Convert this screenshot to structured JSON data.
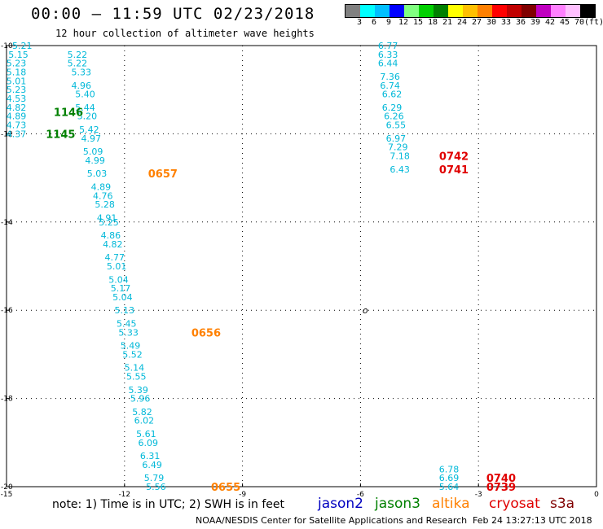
{
  "header": {
    "title": "00:00 – 11:59 UTC 02/23/2018",
    "subtitle": "12 hour collection of altimeter wave heights"
  },
  "colorbar": {
    "colors": [
      "#808080",
      "#00ffff",
      "#00bfff",
      "#0000ff",
      "#80ff80",
      "#00d000",
      "#008000",
      "#ffff00",
      "#ffc000",
      "#ff8000",
      "#ff0000",
      "#c00000",
      "#800000",
      "#c000c0",
      "#ff80ff",
      "#ffc0ff",
      "#000000"
    ],
    "labels": [
      "3",
      "6",
      "9",
      "12",
      "15",
      "18",
      "21",
      "24",
      "27",
      "30",
      "33",
      "36",
      "39",
      "42",
      "45",
      "70",
      "(ft)"
    ]
  },
  "chart_data": {
    "type": "scatter",
    "xlim": [
      -15,
      0
    ],
    "ylim": [
      -20,
      -10
    ],
    "x_ticks": [
      "-15",
      "-12",
      "-9",
      "-6",
      "-3",
      "0"
    ],
    "y_ticks": [
      "-10",
      "-12",
      "-14",
      "-16",
      "-18",
      "-20"
    ],
    "y_tick_values": [
      -10,
      -12,
      -14,
      -16,
      -18,
      -20
    ],
    "x_tick_values": [
      -15,
      -12,
      -9,
      -6,
      -3,
      0
    ],
    "tracks": [
      {
        "points": [
          {
            "lon": -14.6,
            "lat": -10.0,
            "v": "5.21"
          },
          {
            "lon": -14.7,
            "lat": -10.2,
            "v": "5.15"
          },
          {
            "lon": -14.8,
            "lat": -10.4,
            "v": "5.23"
          },
          {
            "lon": -14.9,
            "lat": -10.6,
            "v": "5.18"
          },
          {
            "lon": -14.95,
            "lat": -10.8,
            "v": "5.01"
          },
          {
            "lon": -14.95,
            "lat": -11.0,
            "v": "5.23"
          },
          {
            "lon": -15.0,
            "lat": -11.2,
            "v": "4.53"
          },
          {
            "lon": -15.0,
            "lat": -11.4,
            "v": "4.82"
          },
          {
            "lon": -15.0,
            "lat": -11.6,
            "v": "4.89"
          },
          {
            "lon": -15.0,
            "lat": -11.8,
            "v": "4.73"
          },
          {
            "lon": -15.0,
            "lat": -12.0,
            "v": "4.37"
          }
        ]
      },
      {
        "points": [
          {
            "lon": -13.2,
            "lat": -10.2,
            "v": "5.22"
          },
          {
            "lon": -13.2,
            "lat": -10.4,
            "v": "5.22"
          },
          {
            "lon": -13.1,
            "lat": -10.6,
            "v": "5.33"
          },
          {
            "lon": -13.1,
            "lat": -10.9,
            "v": "4.96"
          },
          {
            "lon": -13.0,
            "lat": -11.1,
            "v": "5.40"
          },
          {
            "lon": -13.0,
            "lat": -11.4,
            "v": "5.44"
          },
          {
            "lon": -12.95,
            "lat": -11.6,
            "v": "5.20"
          },
          {
            "lon": -12.9,
            "lat": -11.9,
            "v": "5.42"
          },
          {
            "lon": -12.85,
            "lat": -12.1,
            "v": "4.97"
          },
          {
            "lon": -12.8,
            "lat": -12.4,
            "v": "5.09"
          },
          {
            "lon": -12.75,
            "lat": -12.6,
            "v": "4.99"
          },
          {
            "lon": -12.7,
            "lat": -12.9,
            "v": "5.03"
          },
          {
            "lon": -12.6,
            "lat": -13.2,
            "v": "4.89"
          },
          {
            "lon": -12.55,
            "lat": -13.4,
            "v": "4.76"
          },
          {
            "lon": -12.5,
            "lat": -13.6,
            "v": "5.28"
          },
          {
            "lon": -12.45,
            "lat": -13.9,
            "v": "4.91"
          },
          {
            "lon": -12.4,
            "lat": -14.0,
            "v": "5.25"
          },
          {
            "lon": -12.35,
            "lat": -14.3,
            "v": "4.86"
          },
          {
            "lon": -12.3,
            "lat": -14.5,
            "v": "4.82"
          },
          {
            "lon": -12.25,
            "lat": -14.8,
            "v": "4.77"
          },
          {
            "lon": -12.2,
            "lat": -15.0,
            "v": "5.01"
          },
          {
            "lon": -12.15,
            "lat": -15.3,
            "v": "5.04"
          },
          {
            "lon": -12.1,
            "lat": -15.5,
            "v": "5.17"
          },
          {
            "lon": -12.05,
            "lat": -15.7,
            "v": "5.04"
          },
          {
            "lon": -12.0,
            "lat": -16.0,
            "v": "5.13"
          },
          {
            "lon": -11.95,
            "lat": -16.3,
            "v": "5.45"
          },
          {
            "lon": -11.9,
            "lat": -16.5,
            "v": "5.33"
          },
          {
            "lon": -11.85,
            "lat": -16.8,
            "v": "5.49"
          },
          {
            "lon": -11.8,
            "lat": -17.0,
            "v": "5.52"
          },
          {
            "lon": -11.75,
            "lat": -17.3,
            "v": "5.14"
          },
          {
            "lon": -11.7,
            "lat": -17.5,
            "v": "5.55"
          },
          {
            "lon": -11.65,
            "lat": -17.8,
            "v": "5.39"
          },
          {
            "lon": -11.6,
            "lat": -18.0,
            "v": "5.96"
          },
          {
            "lon": -11.55,
            "lat": -18.3,
            "v": "5.82"
          },
          {
            "lon": -11.5,
            "lat": -18.5,
            "v": "6.02"
          },
          {
            "lon": -11.45,
            "lat": -18.8,
            "v": "5.61"
          },
          {
            "lon": -11.4,
            "lat": -19.0,
            "v": "6.09"
          },
          {
            "lon": -11.35,
            "lat": -19.3,
            "v": "6.31"
          },
          {
            "lon": -11.3,
            "lat": -19.5,
            "v": "6.49"
          },
          {
            "lon": -11.25,
            "lat": -19.8,
            "v": "5.79"
          },
          {
            "lon": -11.2,
            "lat": -20.0,
            "v": "5.56"
          }
        ]
      },
      {
        "points": [
          {
            "lon": -5.3,
            "lat": -10.0,
            "v": "6.77"
          },
          {
            "lon": -5.3,
            "lat": -10.2,
            "v": "6.33"
          },
          {
            "lon": -5.3,
            "lat": -10.4,
            "v": "6.44"
          },
          {
            "lon": -5.25,
            "lat": -10.7,
            "v": "7.36"
          },
          {
            "lon": -5.25,
            "lat": -10.9,
            "v": "6.74"
          },
          {
            "lon": -5.2,
            "lat": -11.1,
            "v": "6.62"
          },
          {
            "lon": -5.2,
            "lat": -11.4,
            "v": "6.29"
          },
          {
            "lon": -5.15,
            "lat": -11.6,
            "v": "6.26"
          },
          {
            "lon": -5.1,
            "lat": -11.8,
            "v": "6.55"
          },
          {
            "lon": -5.1,
            "lat": -12.1,
            "v": "6.97"
          },
          {
            "lon": -5.05,
            "lat": -12.3,
            "v": "7.29"
          },
          {
            "lon": -5.0,
            "lat": -12.5,
            "v": "7.18"
          },
          {
            "lon": -5.0,
            "lat": -12.8,
            "v": "6.43"
          }
        ]
      },
      {
        "points": [
          {
            "lon": -3.75,
            "lat": -19.6,
            "v": "6.78"
          },
          {
            "lon": -3.75,
            "lat": -19.8,
            "v": "6.69"
          },
          {
            "lon": -3.75,
            "lat": -20.0,
            "v": "5.64"
          }
        ]
      }
    ],
    "time_labels": [
      {
        "text": "1146",
        "lon": -13.8,
        "lat": -11.5,
        "color": "#008000"
      },
      {
        "text": "1145",
        "lon": -14.0,
        "lat": -12.0,
        "color": "#008000"
      },
      {
        "text": "0657",
        "lon": -11.4,
        "lat": -12.9,
        "color": "#ff8000"
      },
      {
        "text": "0656",
        "lon": -10.3,
        "lat": -16.5,
        "color": "#ff8000"
      },
      {
        "text": "0655",
        "lon": -9.8,
        "lat": -20.0,
        "color": "#ff8000"
      },
      {
        "text": "0742",
        "lon": -4.0,
        "lat": -12.5,
        "color": "#e00000"
      },
      {
        "text": "0741",
        "lon": -4.0,
        "lat": -12.8,
        "color": "#e00000"
      },
      {
        "text": "0740",
        "lon": -2.8,
        "lat": -19.8,
        "color": "#e00000"
      },
      {
        "text": "0739",
        "lon": -2.8,
        "lat": -20.0,
        "color": "#e00000"
      }
    ],
    "marker": {
      "lon": -5.95,
      "lat": -16.0,
      "text": "o"
    }
  },
  "footer": {
    "note": "note: 1) Time is in UTC; 2) SWH is in feet",
    "satellites": [
      {
        "name": "jason2",
        "color": "#0000c0"
      },
      {
        "name": "jason3",
        "color": "#008000"
      },
      {
        "name": "altika",
        "color": "#ff8000"
      },
      {
        "name": "cryosat",
        "color": "#e00000"
      },
      {
        "name": "s3a",
        "color": "#800000"
      }
    ],
    "credit": "NOAA/NESDIS Center for Satellite Applications and Research",
    "timestamp": "Feb 24 13:27:13 UTC 2018"
  }
}
